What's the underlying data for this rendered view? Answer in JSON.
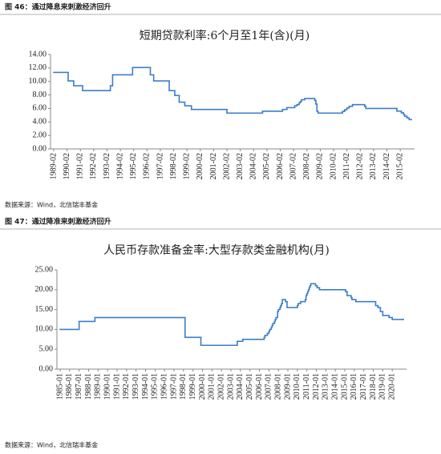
{
  "chart_data": [
    {
      "type": "step-line",
      "caption": "图 46：通过降息来刺激经济回升",
      "title": "短期贷款利率:6个月至1年(含)(月)",
      "source": "数据来源：Wind，北信瑞丰基金",
      "color": "#3d7ec8",
      "x": [
        "1989-02",
        "1990-03",
        "1990-08",
        "1991-04",
        "1993-05",
        "1993-07",
        "1995-01",
        "1996-05",
        "1996-08",
        "1997-10",
        "1998-03",
        "1998-07",
        "1998-12",
        "1999-06",
        "2002-02",
        "2004-10",
        "2006-04",
        "2006-08",
        "2007-03",
        "2007-05",
        "2007-07",
        "2007-08",
        "2007-09",
        "2007-12",
        "2008-09",
        "2008-10",
        "2008-11",
        "2008-12",
        "2010-10",
        "2010-12",
        "2011-02",
        "2011-04",
        "2011-07",
        "2012-06",
        "2012-07",
        "2014-11",
        "2015-03",
        "2015-05",
        "2015-06",
        "2015-08",
        "2015-10",
        "2015-12"
      ],
      "values": [
        11.34,
        10.08,
        9.36,
        8.64,
        9.36,
        10.98,
        12.06,
        10.98,
        10.08,
        8.64,
        7.92,
        6.93,
        6.39,
        5.85,
        5.31,
        5.58,
        5.85,
        6.12,
        6.39,
        6.57,
        6.84,
        7.02,
        7.29,
        7.47,
        7.2,
        6.66,
        5.58,
        5.31,
        5.56,
        5.81,
        6.06,
        6.31,
        6.56,
        6.31,
        6.0,
        5.6,
        5.35,
        5.1,
        4.85,
        4.6,
        4.35,
        4.35
      ],
      "ylim": [
        0,
        14
      ],
      "yticks": [
        {
          "value": 0,
          "label": "0.00"
        },
        {
          "value": 2,
          "label": "2.00"
        },
        {
          "value": 4,
          "label": "4.00"
        },
        {
          "value": 6,
          "label": "6.00"
        },
        {
          "value": 8,
          "label": "8.00"
        },
        {
          "value": 10,
          "label": "10.00"
        },
        {
          "value": 12,
          "label": "12.00"
        },
        {
          "value": 14,
          "label": "14.00"
        }
      ],
      "xticks": [
        "1989-02",
        "1990-02",
        "1991-02",
        "1992-02",
        "1993-02",
        "1994-02",
        "1995-02",
        "1996-02",
        "1997-02",
        "1998-02",
        "1999-02",
        "2000-02",
        "2001-02",
        "2002-02",
        "2003-02",
        "2004-02",
        "2005-02",
        "2006-02",
        "2007-02",
        "2008-02",
        "2009-02",
        "2010-02",
        "2011-02",
        "2012-02",
        "2013-02",
        "2014-02",
        "2015-02"
      ]
    },
    {
      "type": "step-line",
      "caption": "图 47：通过降准来刺激经济回升",
      "title": "人民币存款准备金率:大型存款类金融机构(月)",
      "source": "数据来源：Wind，北信瑞丰基金",
      "color": "#3d7ec8",
      "x": [
        "1985-01",
        "1987-01",
        "1988-09",
        "1998-03",
        "1999-11",
        "2003-09",
        "2004-04",
        "2006-07",
        "2006-08",
        "2006-11",
        "2007-01",
        "2007-02",
        "2007-04",
        "2007-05",
        "2007-06",
        "2007-08",
        "2007-09",
        "2007-10",
        "2007-12",
        "2008-01",
        "2008-03",
        "2008-04",
        "2008-05",
        "2008-06",
        "2008-10",
        "2008-12",
        "2010-01",
        "2010-02",
        "2010-05",
        "2010-11",
        "2010-12",
        "2011-01",
        "2011-02",
        "2011-03",
        "2011-04",
        "2011-05",
        "2011-06",
        "2011-12",
        "2012-02",
        "2012-05",
        "2015-02",
        "2015-04",
        "2015-09",
        "2015-10",
        "2016-03",
        "2018-04",
        "2018-07",
        "2018-10",
        "2019-01",
        "2019-09",
        "2020-01",
        "2021-03"
      ],
      "values": [
        10,
        12,
        13,
        8,
        6,
        7,
        7.5,
        8,
        8.5,
        9,
        9.5,
        10,
        10.5,
        11,
        11.5,
        12,
        12.5,
        13,
        14.5,
        15,
        15.5,
        16,
        16.5,
        17.5,
        17,
        15.5,
        16,
        16.5,
        17,
        17.5,
        18.5,
        19,
        19.5,
        20,
        20.5,
        21,
        21.5,
        21,
        20.5,
        20,
        19.5,
        18.5,
        18,
        17.5,
        17,
        16,
        15.5,
        14.5,
        13.5,
        13,
        12.5,
        12.5
      ],
      "ylim": [
        0,
        25
      ],
      "yticks": [
        {
          "value": 0,
          "label": "0.00"
        },
        {
          "value": 5,
          "label": "5.00"
        },
        {
          "value": 10,
          "label": "10.00"
        },
        {
          "value": 15,
          "label": "15.00"
        },
        {
          "value": 20,
          "label": "20.00"
        },
        {
          "value": 25,
          "label": "25.00"
        }
      ],
      "xticks": [
        "1985-01",
        "1986-01",
        "1987-01",
        "1988-01",
        "1989-01",
        "1990-01",
        "1991-01",
        "1992-01",
        "1993-01",
        "1994-01",
        "1995-01",
        "1996-01",
        "1997-01",
        "1998-01",
        "1999-01",
        "2000-01",
        "2001-01",
        "2002-01",
        "2003-01",
        "2004-01",
        "2005-01",
        "2006-01",
        "2007-01",
        "2008-01",
        "2009-01",
        "2010-01",
        "2011-01",
        "2012-01",
        "2013-01",
        "2014-01",
        "2015-01",
        "2016-01",
        "2017-01",
        "2018-01",
        "2019-01",
        "2020-01"
      ]
    }
  ]
}
